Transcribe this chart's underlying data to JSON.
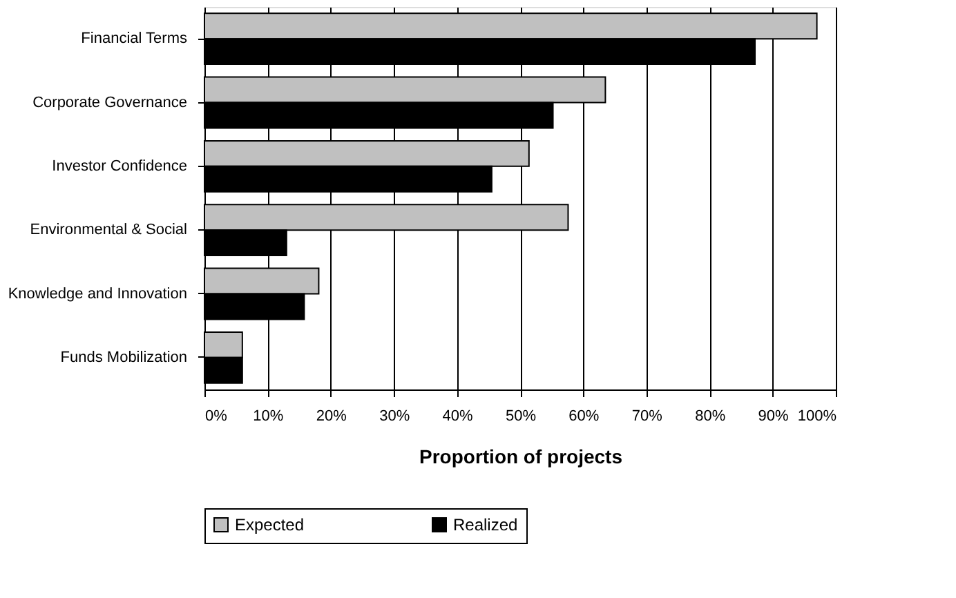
{
  "chart_data": {
    "type": "bar",
    "orientation": "horizontal",
    "xlabel": "Proportion of projects",
    "categories": [
      "Financial Terms",
      "Corporate Governance",
      "Investor Confidence",
      "Environmental & Social",
      "Knowledge and Innovation",
      "Funds Mobilization"
    ],
    "series": [
      {
        "name": "Expected",
        "color": "#c0c0c0",
        "values": [
          97,
          63.5,
          51.4,
          57.6,
          18.1,
          6.0
        ]
      },
      {
        "name": "Realized",
        "color": "#000000",
        "values": [
          87.2,
          55.2,
          45.5,
          13.0,
          15.8,
          6.0
        ]
      }
    ],
    "xlim": [
      0,
      100
    ],
    "xticks": [
      {
        "value": 0,
        "label": "0%"
      },
      {
        "value": 10,
        "label": "10%"
      },
      {
        "value": 20,
        "label": "20%"
      },
      {
        "value": 30,
        "label": "30%"
      },
      {
        "value": 40,
        "label": "40%"
      },
      {
        "value": 50,
        "label": "50%"
      },
      {
        "value": 60,
        "label": "60%"
      },
      {
        "value": 70,
        "label": "70%"
      },
      {
        "value": 80,
        "label": "80%"
      },
      {
        "value": 90,
        "label": "90%"
      },
      {
        "value": 100,
        "label": "100%"
      }
    ],
    "grid": "x",
    "legend": "bottom"
  }
}
